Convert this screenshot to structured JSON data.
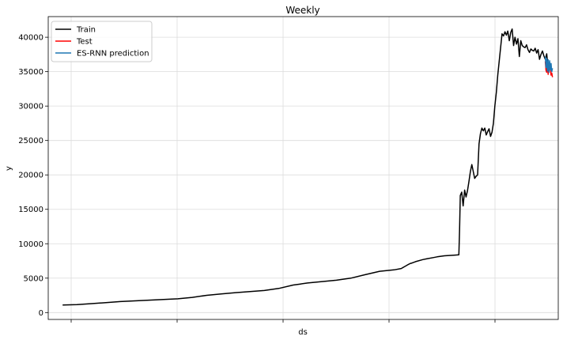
{
  "chart_data": {
    "type": "line",
    "title": "Weekly",
    "xlabel": "ds",
    "ylabel": "y",
    "x_tick_labels": [
      "",
      "",
      "",
      "",
      ""
    ],
    "x_tick_count": 5,
    "ylim": [
      -1000,
      43000
    ],
    "yticks": [
      0,
      5000,
      10000,
      15000,
      20000,
      25000,
      30000,
      35000,
      40000
    ],
    "grid": true,
    "legend_position": "top-left",
    "series": [
      {
        "name": "Train",
        "color": "#000000",
        "x": [
          0,
          20,
          40,
          60,
          80,
          100,
          120,
          140,
          160,
          180,
          200,
          220,
          240,
          260,
          280,
          300,
          320,
          330,
          340,
          350,
          360,
          370,
          380,
          400,
          420,
          440,
          460,
          470,
          475,
          480,
          482,
          483,
          485,
          490,
          500,
          505,
          515,
          520,
          530,
          545,
          550,
          551,
          552,
          554,
          556,
          558,
          560,
          562,
          564,
          566,
          568,
          570,
          572,
          574,
          576,
          578,
          580,
          582,
          584,
          586,
          588,
          590,
          592,
          594,
          596,
          598,
          600,
          602,
          604,
          606,
          608,
          610,
          612,
          614,
          616,
          618,
          620,
          622,
          624,
          626,
          628,
          630,
          632,
          634,
          636,
          638,
          640,
          642,
          644,
          646,
          648,
          650,
          652,
          654,
          656,
          658,
          660,
          662,
          664,
          666,
          668,
          670,
          672,
          673,
          674
        ],
        "y": [
          1100,
          1150,
          1300,
          1450,
          1600,
          1700,
          1800,
          1900,
          2000,
          2200,
          2500,
          2700,
          2900,
          3050,
          3200,
          3500,
          4000,
          4150,
          4300,
          4400,
          4500,
          4600,
          4700,
          5000,
          5500,
          6000,
          6200,
          6400,
          6700,
          7000,
          7100,
          7150,
          7200,
          7400,
          7700,
          7800,
          8000,
          8100,
          8250,
          8350,
          8400,
          12000,
          17000,
          17500,
          15500,
          17800,
          16800,
          17700,
          19000,
          20500,
          21500,
          20500,
          19500,
          19800,
          20000,
          24500,
          26000,
          26800,
          26400,
          26800,
          25800,
          26300,
          26700,
          25600,
          26200,
          27500,
          30000,
          32000,
          34500,
          36500,
          38500,
          40500,
          40200,
          40800,
          40300,
          40900,
          39500,
          40700,
          41200,
          38800,
          40000,
          39000,
          39800,
          37200,
          39500,
          38800,
          38600,
          38500,
          38900,
          38200,
          37800,
          38300,
          38100,
          38000,
          38400,
          37700,
          38200,
          36800,
          37500,
          38000,
          37300,
          36800,
          37600,
          36500,
          36800
        ]
      },
      {
        "name": "Test",
        "color": "#ff0000",
        "x": [
          670,
          671,
          672,
          673,
          674,
          675,
          676,
          677,
          678,
          679,
          680
        ],
        "y": [
          36500,
          35200,
          34900,
          36200,
          34600,
          35600,
          35800,
          35300,
          34500,
          34800,
          34200
        ]
      },
      {
        "name": "ES-RNN prediction",
        "color": "#1f77b4",
        "x": [
          670,
          671,
          672,
          673,
          674,
          675,
          676,
          677,
          678,
          679,
          680
        ],
        "y": [
          37200,
          35600,
          36900,
          35100,
          36700,
          34900,
          36600,
          35200,
          36200,
          35000,
          35500
        ]
      }
    ]
  }
}
